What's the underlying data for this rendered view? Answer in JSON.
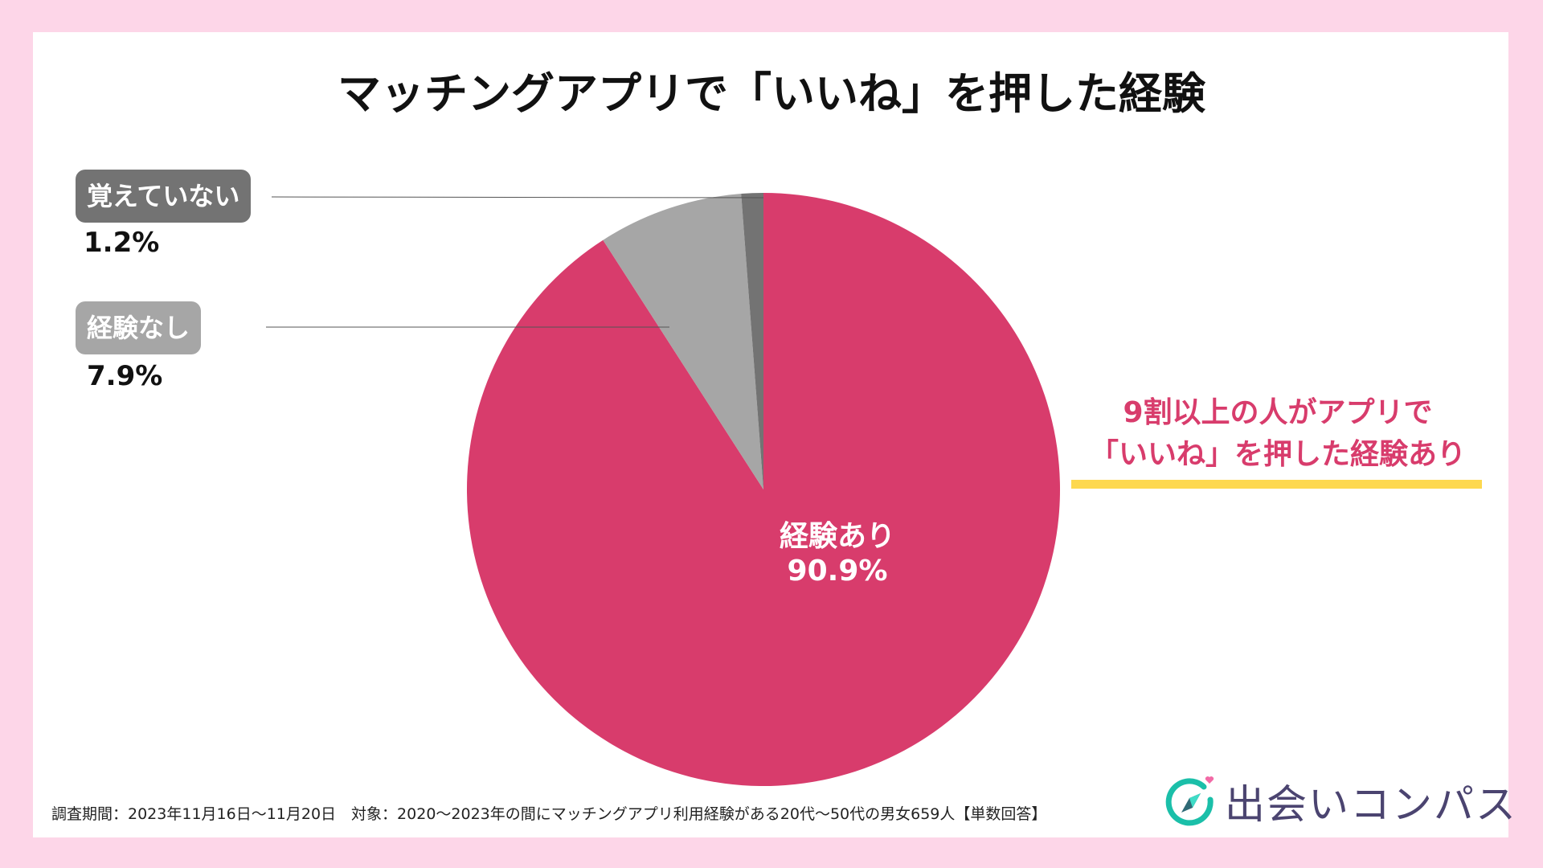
{
  "colors": {
    "background": "#fdd6e8",
    "experienced": "#d83c6c",
    "not_experienced": "#a6a6a6",
    "dont_remember": "#737373",
    "highlight": "#fdd84f",
    "logo_text": "#4b4470",
    "logo_ring": "#1bbfa9",
    "logo_heart": "#f26aa6"
  },
  "chart_data": {
    "type": "pie",
    "title": "マッチングアプリで「いいね」を押した経験",
    "start": "top",
    "direction": "clockwise",
    "slices": [
      {
        "label": "経験あり",
        "value": 90.9,
        "value_label": "90.9%",
        "color": "#d83c6c"
      },
      {
        "label": "経験なし",
        "value": 7.9,
        "value_label": "7.9%",
        "color": "#a6a6a6"
      },
      {
        "label": "覚えていない",
        "value": 1.2,
        "value_label": "1.2%",
        "color": "#737373"
      }
    ],
    "annotation": [
      "9割以上の人がアプリで",
      "「いいね」を押した経験あり"
    ]
  },
  "footer": "調査期間：2023年11月16日～11月20日　対象：2020～2023年の間にマッチングアプリ利用経験がある20代～50代の男女659人【単数回答】",
  "logo": {
    "text": "出会いコンパス",
    "icon": "compass-heart-icon"
  }
}
